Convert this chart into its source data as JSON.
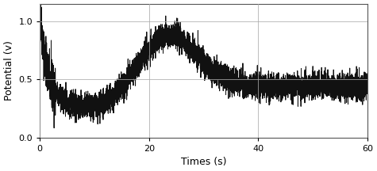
{
  "title": "",
  "xlabel": "Times (s)",
  "ylabel": "Potential (v)",
  "xlim": [
    0,
    60
  ],
  "ylim": [
    0.0,
    1.15
  ],
  "yticks": [
    0.0,
    0.5,
    1.0
  ],
  "xticks": [
    0,
    20,
    40,
    60
  ],
  "grid_color": "#aaaaaa",
  "line_color": "#111111",
  "bg_color": "#ffffff",
  "fig_bg_color": "#ffffff",
  "linewidth": 0.7,
  "noise_seed": 42
}
